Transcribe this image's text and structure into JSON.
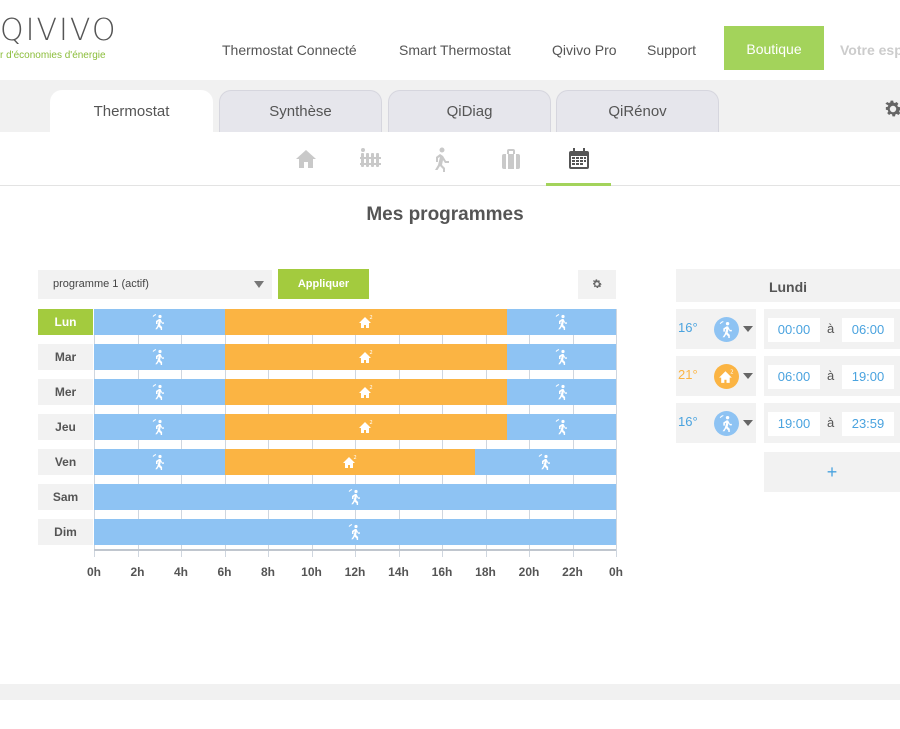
{
  "brand": {
    "logo": "QIVIVO",
    "tagline": "r d'économies d'énergie"
  },
  "nav": {
    "items": [
      "Thermostat Connecté",
      "Smart Thermostat",
      "Qivivo Pro",
      "Support"
    ],
    "boutique": "Boutique",
    "votre": "Votre esp"
  },
  "tabs": [
    "Thermostat",
    "Synthèse",
    "QiDiag",
    "QiRénov"
  ],
  "subnav_icons": [
    "home-icon",
    "radiator-icon",
    "walking-person-icon",
    "suitcase-icon",
    "calendar-icon"
  ],
  "page_title": "Mes programmes",
  "program": {
    "selected": "programme 1 (actif)",
    "apply_label": "Appliquer"
  },
  "schedule": {
    "days": [
      {
        "label": "Lun",
        "active": true
      },
      {
        "label": "Mar",
        "active": false
      },
      {
        "label": "Mer",
        "active": false
      },
      {
        "label": "Jeu",
        "active": false
      },
      {
        "label": "Ven",
        "active": false
      },
      {
        "label": "Sam",
        "active": false
      },
      {
        "label": "Dim",
        "active": false
      }
    ],
    "ticks": [
      "0h",
      "2h",
      "4h",
      "6h",
      "8h",
      "10h",
      "12h",
      "14h",
      "16h",
      "18h",
      "20h",
      "22h",
      "0h"
    ]
  },
  "day_panel": {
    "title": "Lundi",
    "slots": [
      {
        "temp": "16°",
        "mode": "away",
        "start": "00:00",
        "sep": "à",
        "end": "06:00"
      },
      {
        "temp": "21°",
        "mode": "home",
        "start": "06:00",
        "sep": "à",
        "end": "19:00"
      },
      {
        "temp": "16°",
        "mode": "away",
        "start": "19:00",
        "sep": "à",
        "end": "23:59"
      }
    ],
    "add_label": "+"
  },
  "colors": {
    "away": "#8ec3f3",
    "home": "#fbb443",
    "accent": "#a3cb3e",
    "link": "#4aa3df"
  }
}
